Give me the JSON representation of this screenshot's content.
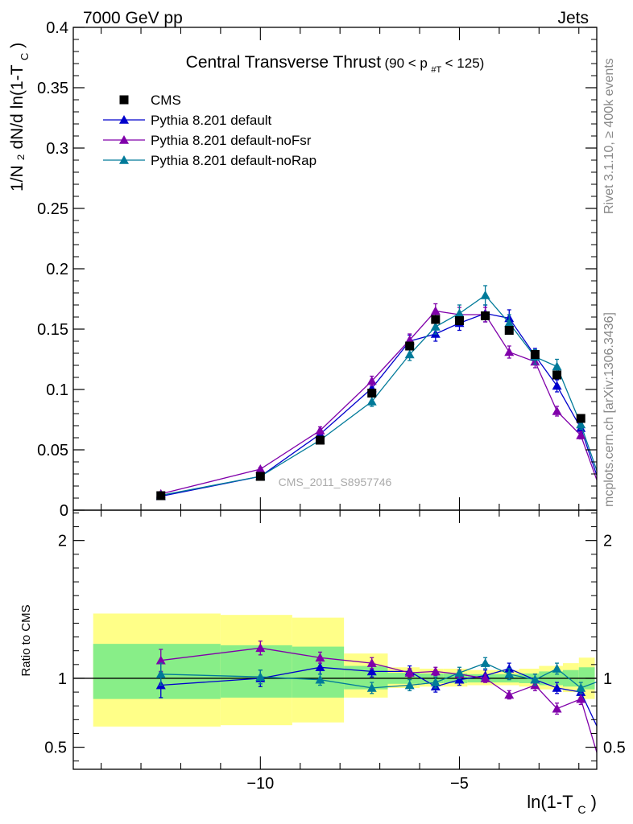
{
  "header": {
    "left": "7000 GeV pp",
    "right": "Jets"
  },
  "side_labels": {
    "rivet": "Rivet 3.1.10, ≥ 400k events",
    "mcplots": "mcplots.cern.ch [arXiv:1306.3436]"
  },
  "watermark": "CMS_2011_S8957746",
  "colors": {
    "cms": "#000000",
    "default": "#0000cc",
    "noFsr": "#8000aa",
    "noRap": "#007a99",
    "band_yellow": "#ffff88",
    "band_green": "#88ee88"
  },
  "chart_data": [
    {
      "panel": "main",
      "type": "line",
      "title": "Central Transverse Thrust",
      "title_cut": {
        "pre": "(90 < p",
        "sub": "#T",
        "post": "  < 125)"
      },
      "ylabel": "1/N ₂ dN/d ln(1-T",
      "ylabel_sub": "C",
      "ylabel_end": ")",
      "xlabel": "ln(1-T",
      "xlabel_sub": "C",
      "xlabel_end": ")",
      "xlim": [
        -14.7,
        -1.55
      ],
      "ylim": [
        0,
        0.4
      ],
      "yticks": [
        0,
        0.05,
        0.1,
        0.15,
        0.2,
        0.25,
        0.3,
        0.35,
        0.4
      ],
      "ytick_labels": [
        "0",
        "0.05",
        "0.1",
        "0.15",
        "0.2",
        "0.25",
        "0.3",
        "0.35",
        "0.4"
      ],
      "legend_position": "top-left",
      "legend": [
        "CMS",
        "Pythia 8.201 default",
        "Pythia 8.201 default-noFsr",
        "Pythia 8.201 default-noRap"
      ],
      "bins": [
        [
          -14.2,
          -11.0
        ],
        [
          -11.0,
          -9.2
        ],
        [
          -9.2,
          -7.9
        ],
        [
          -7.9,
          -6.8
        ],
        [
          -6.8,
          -6.0
        ],
        [
          -6.0,
          -5.4
        ],
        [
          -5.4,
          -4.8
        ],
        [
          -4.8,
          -4.2
        ],
        [
          -4.2,
          -3.5
        ],
        [
          -3.5,
          -3.0
        ],
        [
          -3.0,
          -2.4
        ],
        [
          -2.4,
          -2.0
        ],
        [
          -2.0,
          -1.6
        ]
      ],
      "x": [
        -12.5,
        -10.0,
        -8.5,
        -7.2,
        -6.25,
        -5.6,
        -5.0,
        -4.35,
        -3.75,
        -3.1,
        -2.55,
        -1.95,
        -1.3
      ],
      "series": [
        {
          "name": "CMS",
          "key": "cms",
          "marker": "square",
          "values": [
            0.012,
            0.028,
            0.058,
            0.097,
            0.136,
            0.158,
            0.157,
            0.161,
            0.149,
            0.129,
            0.112,
            0.076,
            0.009
          ],
          "errors": [
            0.001,
            0.001,
            0.002,
            0.002,
            0.003,
            0.003,
            0.003,
            0.003,
            0.003,
            0.003,
            0.003,
            0.002,
            0.001
          ]
        },
        {
          "name": "Pythia 8.201 default",
          "key": "default",
          "marker": "triangle",
          "values": [
            0.0115,
            0.028,
            0.063,
            0.101,
            0.14,
            0.146,
            0.155,
            0.163,
            0.159,
            0.128,
            0.103,
            0.068,
            0.0045
          ],
          "errors": [
            0.0008,
            0.0015,
            0.003,
            0.004,
            0.005,
            0.006,
            0.006,
            0.007,
            0.007,
            0.006,
            0.005,
            0.004,
            0.0015
          ]
        },
        {
          "name": "Pythia 8.201 default-noFsr",
          "key": "noFsr",
          "marker": "triangle",
          "values": [
            0.0135,
            0.034,
            0.066,
            0.107,
            0.141,
            0.165,
            0.162,
            0.162,
            0.131,
            0.123,
            0.082,
            0.062,
            0.002
          ],
          "errors": [
            0.0008,
            0.0015,
            0.003,
            0.004,
            0.005,
            0.006,
            0.006,
            0.006,
            0.005,
            0.005,
            0.004,
            0.003,
            0.0012
          ]
        },
        {
          "name": "Pythia 8.201 default-noRap",
          "key": "noRap",
          "marker": "triangle",
          "values": [
            0.0123,
            0.028,
            0.058,
            0.09,
            0.129,
            0.152,
            0.163,
            0.178,
            0.155,
            0.127,
            0.119,
            0.071,
            0.009
          ],
          "errors": [
            0.0008,
            0.0015,
            0.003,
            0.004,
            0.005,
            0.006,
            0.007,
            0.008,
            0.007,
            0.006,
            0.006,
            0.004,
            0.0015
          ]
        }
      ]
    },
    {
      "panel": "ratio",
      "type": "line",
      "ylabel": "Ratio to CMS",
      "xlim": [
        -14.7,
        -1.55
      ],
      "ylim": [
        0.34,
        2.22
      ],
      "yticks": [
        0.5,
        1,
        2
      ],
      "ytick_labels": [
        "0.5",
        "1",
        "2"
      ],
      "xticks": [
        -10,
        -5
      ],
      "xtick_labels": [
        "−10",
        "−5"
      ],
      "bands": {
        "yellow": [
          [
            0.65,
            1.47
          ],
          [
            0.66,
            1.46
          ],
          [
            0.68,
            1.44
          ],
          [
            0.86,
            1.18
          ],
          [
            0.93,
            1.08
          ],
          [
            0.94,
            1.07
          ],
          [
            0.94,
            1.07
          ],
          [
            0.95,
            1.06
          ],
          [
            0.95,
            1.06
          ],
          [
            0.94,
            1.07
          ],
          [
            0.92,
            1.09
          ],
          [
            0.9,
            1.11
          ],
          [
            0.85,
            1.15
          ]
        ],
        "green": [
          [
            0.85,
            1.25
          ],
          [
            0.86,
            1.24
          ],
          [
            0.86,
            1.23
          ],
          [
            0.92,
            1.09
          ],
          [
            0.96,
            1.04
          ],
          [
            0.965,
            1.035
          ],
          [
            0.965,
            1.035
          ],
          [
            0.97,
            1.03
          ],
          [
            0.97,
            1.03
          ],
          [
            0.965,
            1.035
          ],
          [
            0.95,
            1.05
          ],
          [
            0.94,
            1.06
          ],
          [
            0.92,
            1.08
          ]
        ]
      },
      "series": [
        {
          "name": "Pythia 8.201 default",
          "key": "default",
          "values": [
            0.95,
            1.0,
            1.08,
            1.05,
            1.05,
            0.94,
            0.99,
            1.02,
            1.07,
            0.99,
            0.93,
            0.9,
            0.5
          ],
          "errors": [
            0.09,
            0.06,
            0.05,
            0.04,
            0.04,
            0.04,
            0.04,
            0.04,
            0.04,
            0.04,
            0.04,
            0.04,
            0.17
          ]
        },
        {
          "name": "Pythia 8.201 default-noFsr",
          "key": "noFsr",
          "values": [
            1.13,
            1.22,
            1.15,
            1.11,
            1.04,
            1.05,
            1.03,
            1.0,
            0.88,
            0.95,
            0.78,
            0.85,
            0.22
          ],
          "errors": [
            0.08,
            0.05,
            0.04,
            0.04,
            0.03,
            0.03,
            0.03,
            0.03,
            0.03,
            0.04,
            0.04,
            0.04,
            0.15
          ]
        },
        {
          "name": "Pythia 8.201 default-noRap",
          "key": "noRap",
          "values": [
            1.03,
            1.01,
            0.99,
            0.93,
            0.95,
            0.97,
            1.04,
            1.11,
            1.03,
            0.99,
            1.07,
            0.93,
            1.0
          ],
          "errors": [
            0.08,
            0.05,
            0.04,
            0.04,
            0.04,
            0.04,
            0.04,
            0.04,
            0.04,
            0.04,
            0.04,
            0.04,
            0.25
          ]
        }
      ]
    }
  ]
}
